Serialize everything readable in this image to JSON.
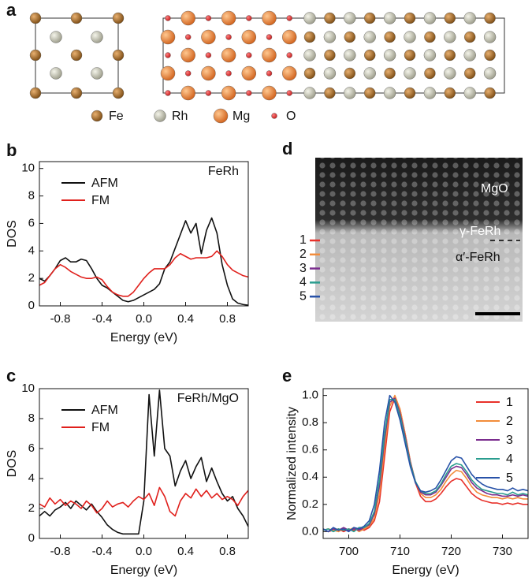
{
  "panel_a": {
    "label": "a",
    "legend": [
      "Fe",
      "Rh",
      "Mg",
      "O"
    ]
  },
  "panel_d": {
    "label": "d",
    "regions": [
      "MgO",
      "γ-FeRh",
      "α′-FeRh"
    ],
    "markers": [
      "1",
      "2",
      "3",
      "4",
      "5"
    ]
  },
  "chart_data": [
    {
      "type": "line",
      "panel_label": "b",
      "annotation": "FeRh",
      "xlabel": "Energy (eV)",
      "ylabel": "DOS",
      "xlim": [
        -1,
        1
      ],
      "ylim": [
        0,
        10.5
      ],
      "xticks": [
        -0.8,
        -0.4,
        {
          "value": 0,
          "label": "0.0"
        },
        0.4,
        0.8
      ],
      "yticks": [
        0,
        2,
        4,
        6,
        8,
        10
      ],
      "legend": "upper left",
      "grid": false,
      "x": [
        -1.0,
        -0.95,
        -0.9,
        -0.85,
        -0.8,
        -0.75,
        -0.7,
        -0.65,
        -0.6,
        -0.55,
        -0.5,
        -0.45,
        -0.4,
        -0.35,
        -0.3,
        -0.25,
        -0.2,
        -0.15,
        -0.1,
        -0.05,
        0,
        0.05,
        0.1,
        0.15,
        0.2,
        0.25,
        0.3,
        0.35,
        0.4,
        0.45,
        0.5,
        0.55,
        0.6,
        0.65,
        0.7,
        0.75,
        0.8,
        0.85,
        0.9,
        0.95,
        1.0
      ],
      "series": [
        {
          "name": "AFM",
          "color": "#111111",
          "values": [
            2.0,
            1.8,
            2.2,
            2.7,
            3.3,
            3.5,
            3.2,
            3.2,
            3.4,
            3.3,
            2.7,
            2.0,
            1.5,
            1.3,
            1.0,
            0.7,
            0.4,
            0.3,
            0.4,
            0.6,
            0.8,
            1.0,
            1.2,
            1.6,
            2.7,
            3.2,
            4.2,
            5.2,
            6.2,
            5.3,
            6.0,
            3.8,
            5.5,
            6.4,
            5.3,
            3.0,
            1.5,
            0.5,
            0.2,
            0.1,
            0.05
          ]
        },
        {
          "name": "FM",
          "color": "#e0201c",
          "values": [
            1.5,
            1.7,
            2.2,
            2.7,
            3.0,
            2.8,
            2.5,
            2.3,
            2.1,
            2.0,
            2.0,
            2.1,
            1.9,
            1.4,
            1.0,
            0.8,
            0.7,
            0.7,
            1.0,
            1.5,
            2.0,
            2.4,
            2.7,
            2.7,
            2.7,
            3.0,
            3.5,
            3.8,
            3.6,
            3.4,
            3.5,
            3.5,
            3.5,
            3.6,
            4.0,
            3.6,
            3.0,
            2.6,
            2.4,
            2.2,
            2.1
          ]
        }
      ]
    },
    {
      "type": "line",
      "panel_label": "c",
      "annotation": "FeRh/MgO",
      "xlabel": "Energy (eV)",
      "ylabel": "DOS",
      "xlim": [
        -1,
        1
      ],
      "ylim": [
        0,
        10
      ],
      "xticks": [
        -0.8,
        -0.4,
        {
          "value": 0,
          "label": "0.0"
        },
        0.4,
        0.8
      ],
      "yticks": [
        0,
        2,
        4,
        6,
        8,
        10
      ],
      "legend": "upper left",
      "grid": false,
      "x": [
        -1.0,
        -0.95,
        -0.9,
        -0.85,
        -0.8,
        -0.75,
        -0.7,
        -0.65,
        -0.6,
        -0.55,
        -0.5,
        -0.45,
        -0.4,
        -0.35,
        -0.3,
        -0.25,
        -0.2,
        -0.15,
        -0.1,
        -0.05,
        0,
        0.05,
        0.1,
        0.15,
        0.2,
        0.25,
        0.3,
        0.35,
        0.4,
        0.45,
        0.5,
        0.55,
        0.6,
        0.65,
        0.7,
        0.75,
        0.8,
        0.85,
        0.9,
        0.95,
        1.0
      ],
      "series": [
        {
          "name": "AFM",
          "color": "#111111",
          "values": [
            1.5,
            1.8,
            1.5,
            1.9,
            2.1,
            2.4,
            2.0,
            2.5,
            2.2,
            1.9,
            2.3,
            1.8,
            1.4,
            0.9,
            0.6,
            0.4,
            0.3,
            0.3,
            0.3,
            0.3,
            2.5,
            9.6,
            5.5,
            9.9,
            6.0,
            5.5,
            3.5,
            4.5,
            5.2,
            4.0,
            4.8,
            5.4,
            3.8,
            4.7,
            3.8,
            3.0,
            2.5,
            2.8,
            2.0,
            1.5,
            0.8
          ]
        },
        {
          "name": "FM",
          "color": "#e0201c",
          "values": [
            2.3,
            2.1,
            2.7,
            2.3,
            2.6,
            2.2,
            2.5,
            2.3,
            2.0,
            2.5,
            2.2,
            1.7,
            2.0,
            2.5,
            2.1,
            2.3,
            2.4,
            2.1,
            2.5,
            2.8,
            2.6,
            3.0,
            2.2,
            3.4,
            2.8,
            1.8,
            1.5,
            2.5,
            3.0,
            2.7,
            3.3,
            2.8,
            3.2,
            2.7,
            3.0,
            2.6,
            2.8,
            2.6,
            2.2,
            2.8,
            3.2
          ]
        }
      ]
    },
    {
      "type": "line",
      "panel_label": "e",
      "xlabel": "Energy (eV)",
      "ylabel": "Normalized intensity",
      "xlim": [
        695,
        735
      ],
      "ylim": [
        -0.05,
        1.05
      ],
      "xticks": [
        700,
        710,
        720,
        730
      ],
      "yticks": [
        {
          "value": 0,
          "label": "0.0"
        },
        0.2,
        0.4,
        0.6,
        0.8,
        {
          "value": 1,
          "label": "1.0"
        }
      ],
      "legend": "upper right",
      "grid": false,
      "x": [
        695,
        696,
        697,
        698,
        699,
        700,
        701,
        702,
        703,
        704,
        705,
        706,
        707,
        708,
        709,
        710,
        711,
        712,
        713,
        714,
        715,
        716,
        717,
        718,
        719,
        720,
        721,
        722,
        723,
        724,
        725,
        726,
        727,
        728,
        729,
        730,
        731,
        732,
        733,
        734,
        735
      ],
      "series": [
        {
          "name": "1",
          "color": "#e8312a",
          "values": [
            0.02,
            0.0,
            0.01,
            0.02,
            0.0,
            0.02,
            0.01,
            0.02,
            0.01,
            0.03,
            0.08,
            0.22,
            0.55,
            0.88,
            0.98,
            0.9,
            0.72,
            0.52,
            0.36,
            0.26,
            0.22,
            0.22,
            0.24,
            0.28,
            0.33,
            0.37,
            0.39,
            0.38,
            0.33,
            0.28,
            0.25,
            0.23,
            0.22,
            0.21,
            0.21,
            0.2,
            0.21,
            0.2,
            0.21,
            0.2,
            0.2
          ]
        },
        {
          "name": "2",
          "color": "#f28c3a",
          "values": [
            0.01,
            0.02,
            0.01,
            0.0,
            0.02,
            0.01,
            0.03,
            0.0,
            0.02,
            0.04,
            0.1,
            0.28,
            0.62,
            0.92,
            1.0,
            0.9,
            0.72,
            0.52,
            0.37,
            0.28,
            0.25,
            0.25,
            0.27,
            0.31,
            0.37,
            0.42,
            0.45,
            0.44,
            0.39,
            0.33,
            0.29,
            0.27,
            0.26,
            0.25,
            0.25,
            0.24,
            0.25,
            0.24,
            0.25,
            0.24,
            0.24
          ]
        },
        {
          "name": "3",
          "color": "#7b2d8e",
          "values": [
            0.02,
            0.0,
            0.02,
            0.01,
            0.03,
            0.01,
            0.02,
            0.01,
            0.03,
            0.05,
            0.13,
            0.34,
            0.68,
            0.95,
            0.98,
            0.87,
            0.7,
            0.51,
            0.37,
            0.29,
            0.27,
            0.27,
            0.29,
            0.34,
            0.4,
            0.46,
            0.48,
            0.47,
            0.42,
            0.36,
            0.32,
            0.3,
            0.28,
            0.27,
            0.27,
            0.26,
            0.26,
            0.27,
            0.26,
            0.27,
            0.26
          ]
        },
        {
          "name": "4",
          "color": "#2a9d8f",
          "values": [
            0.01,
            0.02,
            0.0,
            0.02,
            0.01,
            0.02,
            0.0,
            0.03,
            0.03,
            0.06,
            0.15,
            0.38,
            0.72,
            0.97,
            0.97,
            0.85,
            0.68,
            0.5,
            0.37,
            0.3,
            0.28,
            0.28,
            0.3,
            0.35,
            0.42,
            0.48,
            0.5,
            0.49,
            0.44,
            0.38,
            0.34,
            0.31,
            0.3,
            0.29,
            0.28,
            0.28,
            0.27,
            0.29,
            0.27,
            0.28,
            0.27
          ]
        },
        {
          "name": "5",
          "color": "#2852a8",
          "values": [
            0.02,
            0.0,
            0.03,
            0.01,
            0.02,
            0.0,
            0.03,
            0.02,
            0.04,
            0.08,
            0.2,
            0.45,
            0.8,
            1.0,
            0.95,
            0.82,
            0.65,
            0.48,
            0.36,
            0.3,
            0.29,
            0.3,
            0.32,
            0.38,
            0.45,
            0.52,
            0.55,
            0.54,
            0.48,
            0.42,
            0.38,
            0.35,
            0.33,
            0.32,
            0.31,
            0.31,
            0.3,
            0.32,
            0.3,
            0.31,
            0.3
          ]
        }
      ]
    }
  ]
}
